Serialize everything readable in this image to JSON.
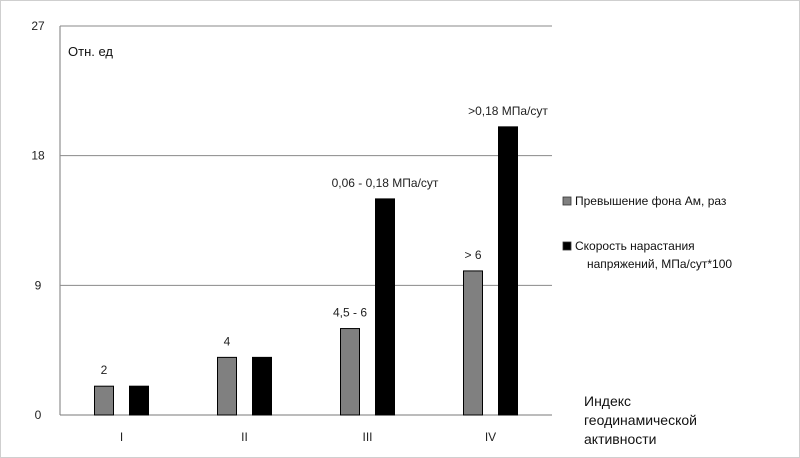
{
  "chart_data": {
    "type": "bar",
    "unit_label": "Отн. ед",
    "xlabel": [
      "Индекс",
      "геодинамической",
      "активности"
    ],
    "ylabel": "",
    "ylim": [
      0,
      27
    ],
    "yticks": [
      0,
      9,
      18,
      27
    ],
    "categories": [
      "I",
      "II",
      "III",
      "IV"
    ],
    "grid": true,
    "legend_position": "right",
    "series": [
      {
        "name": "Превышение фона Ам, раз",
        "values": [
          2,
          4,
          6,
          10
        ],
        "labels": [
          "2",
          "4",
          "4,5 - 6",
          "> 6"
        ],
        "color": "#808080"
      },
      {
        "name": [
          "Скорость нарастания",
          "напряжений, МПа/сут*100"
        ],
        "values": [
          2,
          4,
          15,
          20
        ],
        "labels": [
          "",
          "",
          "0,06 - 0,18 МПа/сут",
          ">0,18 МПа/сут"
        ],
        "color": "#000000"
      }
    ]
  }
}
